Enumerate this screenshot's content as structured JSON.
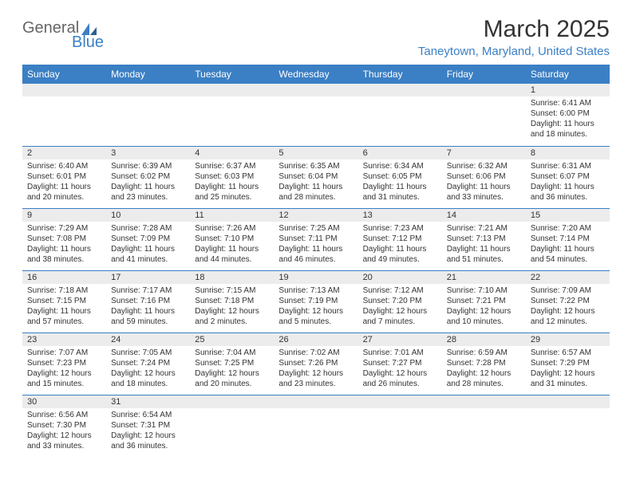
{
  "brand": {
    "part1": "General",
    "part2": "Blue"
  },
  "title": "March 2025",
  "location": "Taneytown, Maryland, United States",
  "colors": {
    "header_bg": "#3b7fc4",
    "header_text": "#ffffff",
    "daynum_bg": "#ececec",
    "cell_border": "#3b7fc4",
    "title_color": "#333333",
    "location_color": "#3b7fc4",
    "logo_gray": "#666666",
    "logo_blue": "#3b7fc4",
    "body_text": "#333333",
    "page_bg": "#ffffff"
  },
  "typography": {
    "month_title_pt": 30,
    "location_pt": 15,
    "weekday_pt": 12,
    "daynum_pt": 11,
    "cell_pt": 10
  },
  "weekdays": [
    "Sunday",
    "Monday",
    "Tuesday",
    "Wednesday",
    "Thursday",
    "Friday",
    "Saturday"
  ],
  "weeks": [
    [
      {
        "day": null
      },
      {
        "day": null
      },
      {
        "day": null
      },
      {
        "day": null
      },
      {
        "day": null
      },
      {
        "day": null
      },
      {
        "day": 1,
        "sunrise": "Sunrise: 6:41 AM",
        "sunset": "Sunset: 6:00 PM",
        "daylight": "Daylight: 11 hours and 18 minutes."
      }
    ],
    [
      {
        "day": 2,
        "sunrise": "Sunrise: 6:40 AM",
        "sunset": "Sunset: 6:01 PM",
        "daylight": "Daylight: 11 hours and 20 minutes."
      },
      {
        "day": 3,
        "sunrise": "Sunrise: 6:39 AM",
        "sunset": "Sunset: 6:02 PM",
        "daylight": "Daylight: 11 hours and 23 minutes."
      },
      {
        "day": 4,
        "sunrise": "Sunrise: 6:37 AM",
        "sunset": "Sunset: 6:03 PM",
        "daylight": "Daylight: 11 hours and 25 minutes."
      },
      {
        "day": 5,
        "sunrise": "Sunrise: 6:35 AM",
        "sunset": "Sunset: 6:04 PM",
        "daylight": "Daylight: 11 hours and 28 minutes."
      },
      {
        "day": 6,
        "sunrise": "Sunrise: 6:34 AM",
        "sunset": "Sunset: 6:05 PM",
        "daylight": "Daylight: 11 hours and 31 minutes."
      },
      {
        "day": 7,
        "sunrise": "Sunrise: 6:32 AM",
        "sunset": "Sunset: 6:06 PM",
        "daylight": "Daylight: 11 hours and 33 minutes."
      },
      {
        "day": 8,
        "sunrise": "Sunrise: 6:31 AM",
        "sunset": "Sunset: 6:07 PM",
        "daylight": "Daylight: 11 hours and 36 minutes."
      }
    ],
    [
      {
        "day": 9,
        "sunrise": "Sunrise: 7:29 AM",
        "sunset": "Sunset: 7:08 PM",
        "daylight": "Daylight: 11 hours and 38 minutes."
      },
      {
        "day": 10,
        "sunrise": "Sunrise: 7:28 AM",
        "sunset": "Sunset: 7:09 PM",
        "daylight": "Daylight: 11 hours and 41 minutes."
      },
      {
        "day": 11,
        "sunrise": "Sunrise: 7:26 AM",
        "sunset": "Sunset: 7:10 PM",
        "daylight": "Daylight: 11 hours and 44 minutes."
      },
      {
        "day": 12,
        "sunrise": "Sunrise: 7:25 AM",
        "sunset": "Sunset: 7:11 PM",
        "daylight": "Daylight: 11 hours and 46 minutes."
      },
      {
        "day": 13,
        "sunrise": "Sunrise: 7:23 AM",
        "sunset": "Sunset: 7:12 PM",
        "daylight": "Daylight: 11 hours and 49 minutes."
      },
      {
        "day": 14,
        "sunrise": "Sunrise: 7:21 AM",
        "sunset": "Sunset: 7:13 PM",
        "daylight": "Daylight: 11 hours and 51 minutes."
      },
      {
        "day": 15,
        "sunrise": "Sunrise: 7:20 AM",
        "sunset": "Sunset: 7:14 PM",
        "daylight": "Daylight: 11 hours and 54 minutes."
      }
    ],
    [
      {
        "day": 16,
        "sunrise": "Sunrise: 7:18 AM",
        "sunset": "Sunset: 7:15 PM",
        "daylight": "Daylight: 11 hours and 57 minutes."
      },
      {
        "day": 17,
        "sunrise": "Sunrise: 7:17 AM",
        "sunset": "Sunset: 7:16 PM",
        "daylight": "Daylight: 11 hours and 59 minutes."
      },
      {
        "day": 18,
        "sunrise": "Sunrise: 7:15 AM",
        "sunset": "Sunset: 7:18 PM",
        "daylight": "Daylight: 12 hours and 2 minutes."
      },
      {
        "day": 19,
        "sunrise": "Sunrise: 7:13 AM",
        "sunset": "Sunset: 7:19 PM",
        "daylight": "Daylight: 12 hours and 5 minutes."
      },
      {
        "day": 20,
        "sunrise": "Sunrise: 7:12 AM",
        "sunset": "Sunset: 7:20 PM",
        "daylight": "Daylight: 12 hours and 7 minutes."
      },
      {
        "day": 21,
        "sunrise": "Sunrise: 7:10 AM",
        "sunset": "Sunset: 7:21 PM",
        "daylight": "Daylight: 12 hours and 10 minutes."
      },
      {
        "day": 22,
        "sunrise": "Sunrise: 7:09 AM",
        "sunset": "Sunset: 7:22 PM",
        "daylight": "Daylight: 12 hours and 12 minutes."
      }
    ],
    [
      {
        "day": 23,
        "sunrise": "Sunrise: 7:07 AM",
        "sunset": "Sunset: 7:23 PM",
        "daylight": "Daylight: 12 hours and 15 minutes."
      },
      {
        "day": 24,
        "sunrise": "Sunrise: 7:05 AM",
        "sunset": "Sunset: 7:24 PM",
        "daylight": "Daylight: 12 hours and 18 minutes."
      },
      {
        "day": 25,
        "sunrise": "Sunrise: 7:04 AM",
        "sunset": "Sunset: 7:25 PM",
        "daylight": "Daylight: 12 hours and 20 minutes."
      },
      {
        "day": 26,
        "sunrise": "Sunrise: 7:02 AM",
        "sunset": "Sunset: 7:26 PM",
        "daylight": "Daylight: 12 hours and 23 minutes."
      },
      {
        "day": 27,
        "sunrise": "Sunrise: 7:01 AM",
        "sunset": "Sunset: 7:27 PM",
        "daylight": "Daylight: 12 hours and 26 minutes."
      },
      {
        "day": 28,
        "sunrise": "Sunrise: 6:59 AM",
        "sunset": "Sunset: 7:28 PM",
        "daylight": "Daylight: 12 hours and 28 minutes."
      },
      {
        "day": 29,
        "sunrise": "Sunrise: 6:57 AM",
        "sunset": "Sunset: 7:29 PM",
        "daylight": "Daylight: 12 hours and 31 minutes."
      }
    ],
    [
      {
        "day": 30,
        "sunrise": "Sunrise: 6:56 AM",
        "sunset": "Sunset: 7:30 PM",
        "daylight": "Daylight: 12 hours and 33 minutes."
      },
      {
        "day": 31,
        "sunrise": "Sunrise: 6:54 AM",
        "sunset": "Sunset: 7:31 PM",
        "daylight": "Daylight: 12 hours and 36 minutes."
      },
      {
        "day": null
      },
      {
        "day": null
      },
      {
        "day": null
      },
      {
        "day": null
      },
      {
        "day": null
      }
    ]
  ]
}
